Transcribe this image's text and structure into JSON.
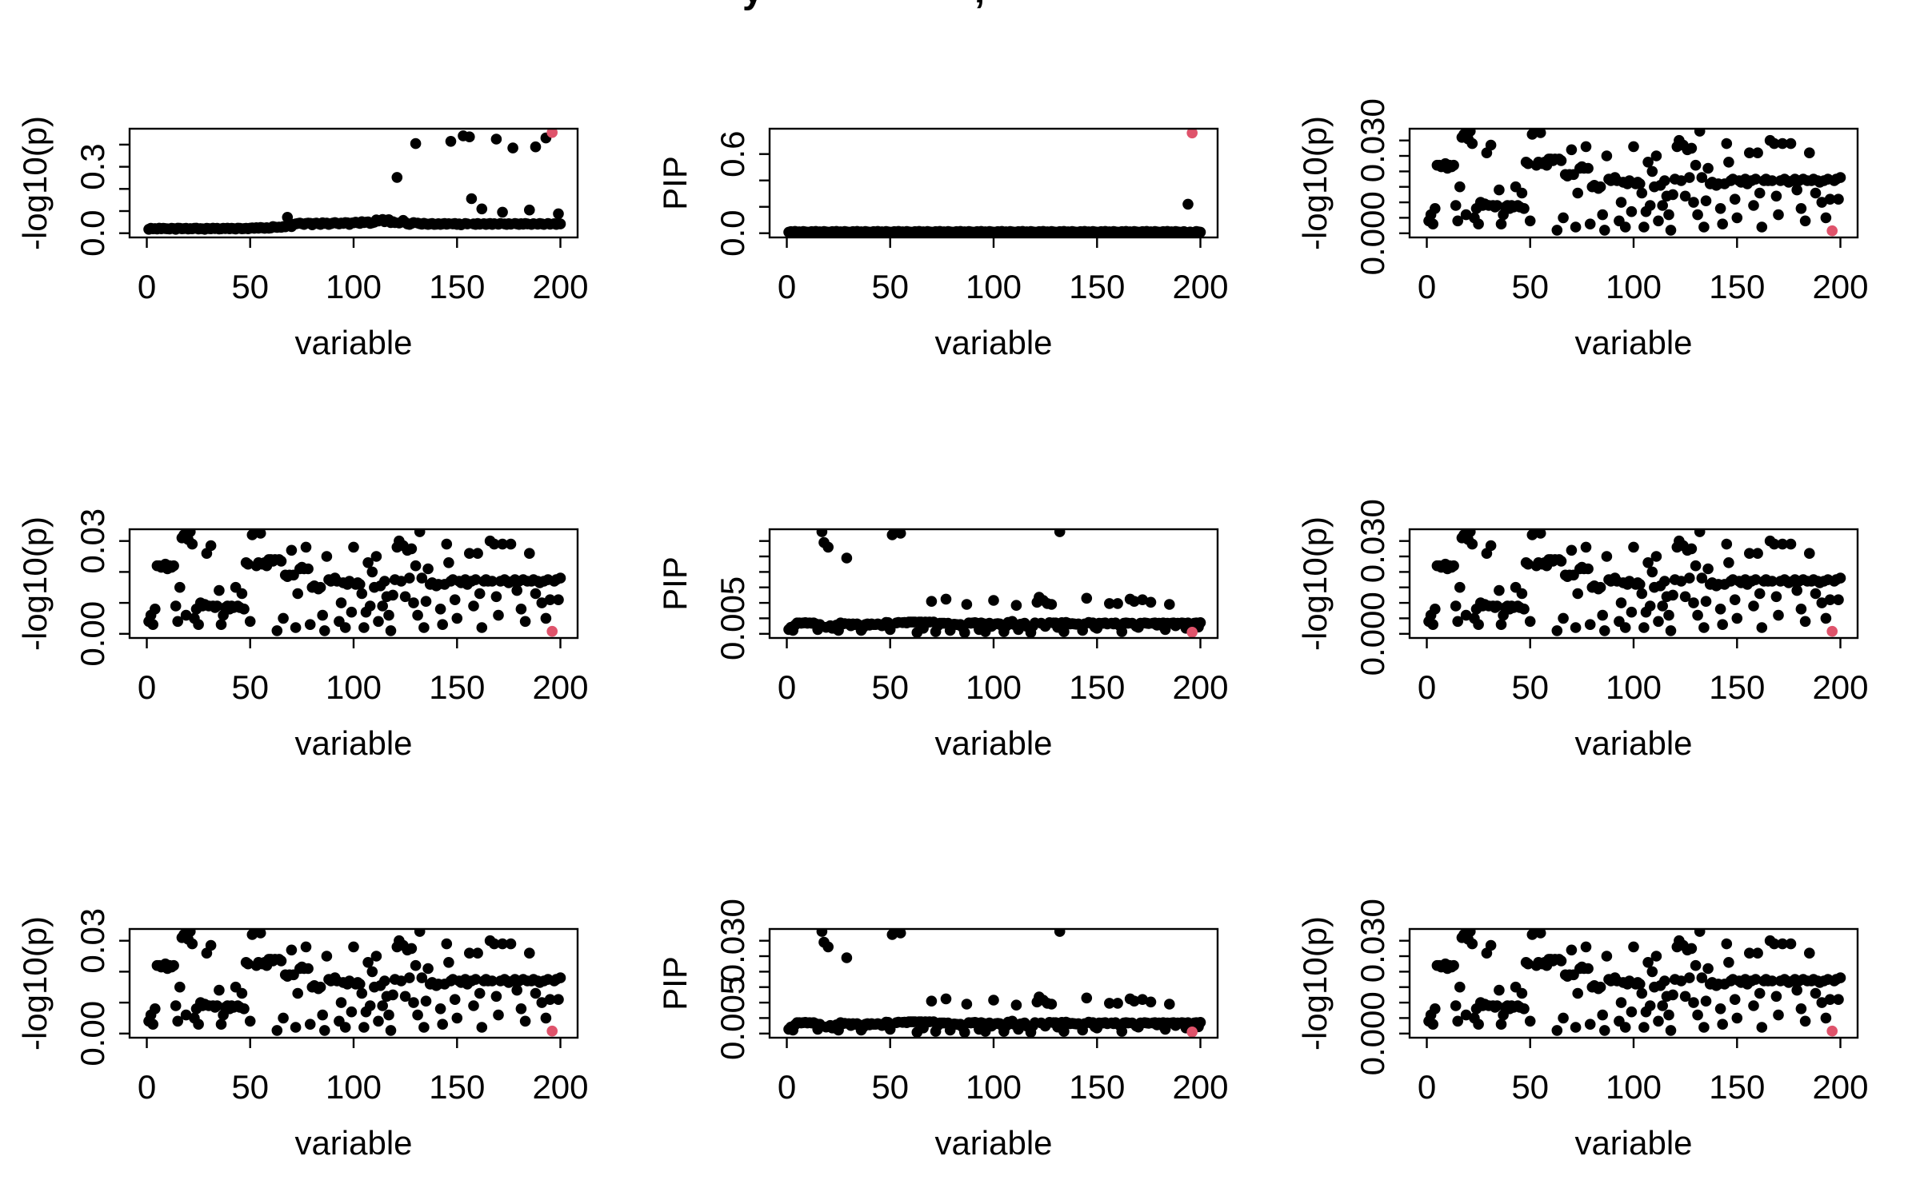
{
  "title": {
    "note": "figure title clipped at top edge; only glyph descenders visible",
    "fragments": [
      "y",
      ","
    ]
  },
  "colors": {
    "point": "#000000",
    "highlight": "#DF536B",
    "background": "#ffffff",
    "axis": "#000000"
  },
  "chart_data": {
    "type": "scatter",
    "layout": "3x3 grid of R base-graphics scatter plots",
    "x_description": "variable index 1..200 (x value = point index + 1... i.e. 1 to 200)",
    "shared_x": {
      "label": "variable",
      "xlim": [
        -8.3,
        208.3
      ],
      "ticks": [
        0,
        50,
        100,
        150,
        200
      ],
      "tick_labels": [
        "0",
        "50",
        "100",
        "150",
        "200"
      ]
    },
    "panels": [
      {
        "id": "r1c1",
        "row": 0,
        "col": 0,
        "y_label": "-log10(p)",
        "dataset": "trend",
        "ylim": [
          -0.019,
          0.472
        ],
        "y_ticks": [
          0,
          0.1,
          0.2,
          0.3,
          0.4
        ],
        "y_tick_labels": [
          [
            0,
            "0.0"
          ],
          [
            0.3,
            "0.3"
          ]
        ],
        "highlight_index": 195
      },
      {
        "id": "r1c2",
        "row": 0,
        "col": 1,
        "y_label": "PIP",
        "dataset": "pip_flat",
        "ylim": [
          -0.032,
          0.792
        ],
        "y_ticks": [
          0,
          0.2,
          0.4,
          0.6
        ],
        "y_tick_labels": [
          [
            0,
            "0.0"
          ],
          [
            0.6,
            "0.6"
          ]
        ],
        "highlight_index": 195
      },
      {
        "id": "r1c3",
        "row": 0,
        "col": 2,
        "y_label": "-log10(p)",
        "dataset": "null_p",
        "ylim": [
          -0.00135,
          0.0338
        ],
        "y_ticks": [
          0,
          0.005,
          0.01,
          0.015,
          0.02,
          0.025,
          0.03
        ],
        "y_tick_labels": [
          [
            0,
            "0.000"
          ],
          [
            0.03,
            "0.030"
          ]
        ],
        "highlight_index": 195
      },
      {
        "id": "r2c1",
        "row": 1,
        "col": 0,
        "y_label": "-log10(p)",
        "dataset": "null_p",
        "ylim": [
          -0.00135,
          0.0338
        ],
        "y_ticks": [
          0,
          0.01,
          0.02,
          0.03
        ],
        "y_tick_labels": [
          [
            0,
            "0.00"
          ],
          [
            0.03,
            "0.03"
          ]
        ],
        "highlight_index": 195
      },
      {
        "id": "r2c2",
        "row": 1,
        "col": 1,
        "y_label": "PIP",
        "dataset": "pip_small",
        "ylim": [
          -0.00135,
          0.0338
        ],
        "y_ticks": [
          0,
          0.005,
          0.01,
          0.015,
          0.02,
          0.025,
          0.03
        ],
        "y_tick_labels": [
          [
            0.005,
            "0.005"
          ]
        ],
        "highlight_index": 195
      },
      {
        "id": "r2c3",
        "row": 1,
        "col": 2,
        "y_label": "-log10(p)",
        "dataset": "null_p",
        "ylim": [
          -0.00135,
          0.0338
        ],
        "y_ticks": [
          0,
          0.005,
          0.01,
          0.015,
          0.02,
          0.025,
          0.03
        ],
        "y_tick_labels": [
          [
            0,
            "0.000"
          ],
          [
            0.03,
            "0.030"
          ]
        ],
        "highlight_index": 195
      },
      {
        "id": "r3c1",
        "row": 2,
        "col": 0,
        "y_label": "-log10(p)",
        "dataset": "null_p",
        "ylim": [
          -0.00135,
          0.0338
        ],
        "y_ticks": [
          0,
          0.01,
          0.02,
          0.03
        ],
        "y_tick_labels": [
          [
            0,
            "0.00"
          ],
          [
            0.03,
            "0.03"
          ]
        ],
        "highlight_index": 195
      },
      {
        "id": "r3c2",
        "row": 2,
        "col": 1,
        "y_label": "PIP",
        "dataset": "pip_small",
        "ylim": [
          -0.00135,
          0.0338
        ],
        "y_ticks": [
          0,
          0.005,
          0.01,
          0.015,
          0.02,
          0.025,
          0.03
        ],
        "y_tick_labels": [
          [
            0.005,
            "0.005"
          ],
          [
            0.03,
            "0.030"
          ]
        ],
        "highlight_index": 195
      },
      {
        "id": "r3c3",
        "row": 2,
        "col": 2,
        "y_label": "-log10(p)",
        "dataset": "null_p",
        "ylim": [
          -0.00135,
          0.0338
        ],
        "y_ticks": [
          0,
          0.005,
          0.01,
          0.015,
          0.02,
          0.025,
          0.03
        ],
        "y_tick_labels": [
          [
            0,
            "0.000"
          ],
          [
            0.03,
            "0.030"
          ]
        ],
        "highlight_index": 195
      }
    ],
    "datasets": {
      "trend": [
        0.018,
        0.022,
        0.02,
        0.021,
        0.019,
        0.023,
        0.02,
        0.022,
        0.021,
        0.02,
        0.019,
        0.022,
        0.021,
        0.018,
        0.023,
        0.022,
        0.02,
        0.021,
        0.022,
        0.019,
        0.021,
        0.02,
        0.022,
        0.023,
        0.019,
        0.021,
        0.02,
        0.018,
        0.022,
        0.021,
        0.02,
        0.023,
        0.021,
        0.022,
        0.019,
        0.02,
        0.022,
        0.021,
        0.023,
        0.02,
        0.022,
        0.021,
        0.019,
        0.023,
        0.022,
        0.02,
        0.021,
        0.022,
        0.02,
        0.023,
        0.024,
        0.022,
        0.025,
        0.023,
        0.026,
        0.024,
        0.022,
        0.025,
        0.023,
        0.024,
        0.03,
        0.028,
        0.026,
        0.028,
        0.027,
        0.03,
        0.029,
        0.072,
        0.034,
        0.03,
        0.04,
        0.042,
        0.044,
        0.046,
        0.043,
        0.04,
        0.044,
        0.046,
        0.045,
        0.038,
        0.044,
        0.046,
        0.043,
        0.04,
        0.047,
        0.044,
        0.046,
        0.04,
        0.043,
        0.046,
        0.048,
        0.045,
        0.042,
        0.046,
        0.044,
        0.048,
        0.047,
        0.04,
        0.046,
        0.047,
        0.05,
        0.047,
        0.044,
        0.052,
        0.048,
        0.05,
        0.051,
        0.044,
        0.047,
        0.05,
        0.06,
        0.055,
        0.058,
        0.062,
        0.052,
        0.059,
        0.061,
        0.048,
        0.052,
        0.048,
        0.252,
        0.046,
        0.05,
        0.058,
        0.049,
        0.042,
        0.04,
        0.044,
        0.048,
        0.405,
        0.046,
        0.043,
        0.041,
        0.045,
        0.042,
        0.04,
        0.042,
        0.044,
        0.04,
        0.041,
        0.043,
        0.04,
        0.042,
        0.044,
        0.041,
        0.043,
        0.415,
        0.042,
        0.044,
        0.04,
        0.042,
        0.038,
        0.44,
        0.044,
        0.042,
        0.435,
        0.156,
        0.042,
        0.04,
        0.044,
        0.041,
        0.11,
        0.043,
        0.04,
        0.042,
        0.044,
        0.04,
        0.043,
        0.425,
        0.041,
        0.044,
        0.095,
        0.042,
        0.04,
        0.043,
        0.041,
        0.385,
        0.044,
        0.042,
        0.04,
        0.043,
        0.041,
        0.044,
        0.042,
        0.105,
        0.04,
        0.043,
        0.39,
        0.041,
        0.044,
        0.042,
        0.04,
        0.43,
        0.044,
        0.041,
        0.455,
        0.043,
        0.04,
        0.088,
        0.042
      ],
      "pip_flat": [
        0.008,
        0.012,
        0.006,
        0.014,
        0.009,
        0.011,
        0.007,
        0.013,
        0.01,
        0.008,
        0.008,
        0.012,
        0.006,
        0.014,
        0.009,
        0.011,
        0.007,
        0.013,
        0.01,
        0.008,
        0.008,
        0.012,
        0.006,
        0.014,
        0.009,
        0.011,
        0.007,
        0.013,
        0.01,
        0.008,
        0.008,
        0.012,
        0.006,
        0.014,
        0.009,
        0.011,
        0.007,
        0.013,
        0.01,
        0.008,
        0.008,
        0.012,
        0.006,
        0.014,
        0.009,
        0.011,
        0.007,
        0.013,
        0.01,
        0.008,
        0.008,
        0.012,
        0.006,
        0.014,
        0.009,
        0.011,
        0.007,
        0.013,
        0.01,
        0.008,
        0.008,
        0.012,
        0.006,
        0.014,
        0.009,
        0.011,
        0.007,
        0.013,
        0.01,
        0.008,
        0.008,
        0.012,
        0.006,
        0.014,
        0.009,
        0.011,
        0.007,
        0.013,
        0.01,
        0.008,
        0.008,
        0.012,
        0.006,
        0.014,
        0.009,
        0.011,
        0.007,
        0.013,
        0.01,
        0.008,
        0.008,
        0.012,
        0.006,
        0.014,
        0.009,
        0.011,
        0.007,
        0.013,
        0.01,
        0.008,
        0.008,
        0.012,
        0.006,
        0.014,
        0.009,
        0.011,
        0.007,
        0.013,
        0.01,
        0.008,
        0.008,
        0.012,
        0.006,
        0.014,
        0.009,
        0.011,
        0.007,
        0.013,
        0.01,
        0.008,
        0.008,
        0.012,
        0.006,
        0.014,
        0.009,
        0.011,
        0.007,
        0.013,
        0.01,
        0.008,
        0.008,
        0.012,
        0.006,
        0.014,
        0.009,
        0.011,
        0.007,
        0.013,
        0.01,
        0.008,
        0.008,
        0.012,
        0.006,
        0.014,
        0.009,
        0.011,
        0.007,
        0.013,
        0.01,
        0.008,
        0.008,
        0.012,
        0.006,
        0.014,
        0.009,
        0.011,
        0.007,
        0.013,
        0.01,
        0.008,
        0.008,
        0.012,
        0.006,
        0.014,
        0.009,
        0.011,
        0.007,
        0.013,
        0.01,
        0.008,
        0.008,
        0.012,
        0.006,
        0.014,
        0.009,
        0.011,
        0.007,
        0.013,
        0.01,
        0.008,
        0.008,
        0.012,
        0.006,
        0.014,
        0.009,
        0.011,
        0.007,
        0.013,
        0.01,
        0.008,
        0.008,
        0.012,
        0.006,
        0.22,
        0.009,
        0.76,
        0.007,
        0.013,
        0.01,
        0.008
      ],
      "null_p": [
        0.004,
        0.006,
        0.003,
        0.008,
        0.022,
        0.022,
        0.0215,
        0.022,
        0.0225,
        0.021,
        0.022,
        0.0215,
        0.022,
        0.009,
        0.004,
        0.015,
        0.031,
        0.032,
        0.006,
        0.0305,
        0.033,
        0.029,
        0.005,
        0.008,
        0.003,
        0.01,
        0.009,
        0.0095,
        0.026,
        0.009,
        0.0285,
        0.009,
        0.0085,
        0.009,
        0.014,
        0.003,
        0.006,
        0.0085,
        0.009,
        0.008,
        0.009,
        0.0085,
        0.015,
        0.009,
        0.0085,
        0.013,
        0.008,
        0.023,
        0.0225,
        0.004,
        0.032,
        0.033,
        0.022,
        0.023,
        0.0325,
        0.0225,
        0.023,
        0.022,
        0.024,
        0.024,
        0.0235,
        0.024,
        0.001,
        0.024,
        0.0235,
        0.005,
        0.019,
        0.0185,
        0.019,
        0.027,
        0.019,
        0.002,
        0.013,
        0.021,
        0.0215,
        0.021,
        0.028,
        0.021,
        0.003,
        0.015,
        0.0155,
        0.015,
        0.0145,
        0.015,
        0.006,
        0.001,
        0.025,
        0.0175,
        0.017,
        0.0175,
        0.018,
        0.017,
        0.004,
        0.01,
        0.0165,
        0.002,
        0.016,
        0.017,
        0.007,
        0.028,
        0.016,
        0.0165,
        0.016,
        0.013,
        0.002,
        0.007,
        0.023,
        0.009,
        0.02,
        0.015,
        0.025,
        0.004,
        0.0155,
        0.009,
        0.017,
        0.012,
        0.006,
        0.001,
        0.0125,
        0.0175,
        0.028,
        0.03,
        0.017,
        0.0285,
        0.012,
        0.027,
        0.018,
        0.0275,
        0.01,
        0.022,
        0.006,
        0.033,
        0.018,
        0.002,
        0.0105,
        0.021,
        0.016,
        0.0165,
        0.016,
        0.0155,
        0.016,
        0.008,
        0.003,
        0.016,
        0.029,
        0.023,
        0.017,
        0.0175,
        0.011,
        0.005,
        0.017,
        0.0165,
        0.017,
        0.0175,
        0.016,
        0.026,
        0.017,
        0.009,
        0.0175,
        0.026,
        0.013,
        0.002,
        0.017,
        0.0175,
        0.017,
        0.03,
        0.017,
        0.029,
        0.012,
        0.006,
        0.017,
        0.029,
        0.0175,
        0.017,
        0.0165,
        0.029,
        0.017,
        0.0175,
        0.014,
        0.017,
        0.008,
        0.0175,
        0.004,
        0.017,
        0.026,
        0.017,
        0.0175,
        0.013,
        0.017,
        0.0165,
        0.01,
        0.017,
        0.005,
        0.0175,
        0.011,
        0.0008,
        0.017,
        0.0175,
        0.011,
        0.018
      ],
      "pip_small": [
        0.0014,
        0.0021,
        0.0011,
        0.0028,
        0.0035,
        0.0035,
        0.0034,
        0.0035,
        0.0036,
        0.0034,
        0.0035,
        0.0034,
        0.0035,
        0.0032,
        0.0014,
        0.003,
        0.033,
        0.0295,
        0.0021,
        0.028,
        0.0026,
        0.0018,
        0.0018,
        0.0028,
        0.0011,
        0.0035,
        0.0032,
        0.0033,
        0.0245,
        0.0032,
        0.0026,
        0.0032,
        0.003,
        0.0032,
        0.0028,
        0.0011,
        0.0021,
        0.003,
        0.0032,
        0.0028,
        0.0032,
        0.003,
        0.003,
        0.0032,
        0.003,
        0.0026,
        0.0028,
        0.0037,
        0.0036,
        0.0014,
        0.032,
        0.033,
        0.0035,
        0.0037,
        0.0325,
        0.0036,
        0.0037,
        0.0035,
        0.0038,
        0.0038,
        0.0038,
        0.0038,
        0.0004,
        0.0038,
        0.0038,
        0.0018,
        0.0038,
        0.0037,
        0.0038,
        0.0105,
        0.0038,
        0.0007,
        0.0026,
        0.0034,
        0.0034,
        0.0034,
        0.0112,
        0.0034,
        0.0011,
        0.003,
        0.0031,
        0.003,
        0.0029,
        0.003,
        0.0021,
        0.0004,
        0.0095,
        0.0035,
        0.0034,
        0.0035,
        0.0036,
        0.0034,
        0.0014,
        0.0035,
        0.0033,
        0.0007,
        0.0032,
        0.0034,
        0.0024,
        0.0108,
        0.0032,
        0.0033,
        0.0032,
        0.0026,
        0.0007,
        0.0024,
        0.0037,
        0.0032,
        0.004,
        0.003,
        0.0092,
        0.0014,
        0.0031,
        0.0032,
        0.0034,
        0.0024,
        0.0021,
        0.0004,
        0.0025,
        0.0035,
        0.0102,
        0.0118,
        0.0034,
        0.0108,
        0.0024,
        0.0098,
        0.0036,
        0.0095,
        0.0035,
        0.0035,
        0.0021,
        0.033,
        0.0036,
        0.0007,
        0.0037,
        0.0034,
        0.0032,
        0.0033,
        0.0032,
        0.0031,
        0.0032,
        0.0028,
        0.0011,
        0.0032,
        0.0115,
        0.0037,
        0.0034,
        0.0035,
        0.0022,
        0.0018,
        0.0034,
        0.0033,
        0.0034,
        0.0035,
        0.0032,
        0.0098,
        0.0034,
        0.0032,
        0.0035,
        0.0098,
        0.0026,
        0.0007,
        0.0034,
        0.0035,
        0.0034,
        0.0112,
        0.0034,
        0.0105,
        0.0024,
        0.0021,
        0.0034,
        0.011,
        0.0035,
        0.0034,
        0.0033,
        0.0102,
        0.0034,
        0.0035,
        0.0028,
        0.0034,
        0.0028,
        0.0035,
        0.0014,
        0.0034,
        0.0095,
        0.0034,
        0.0035,
        0.0026,
        0.0034,
        0.0033,
        0.0035,
        0.0034,
        0.0018,
        0.0035,
        0.0022,
        0.0005,
        0.0034,
        0.0035,
        0.0022,
        0.0036
      ]
    }
  }
}
